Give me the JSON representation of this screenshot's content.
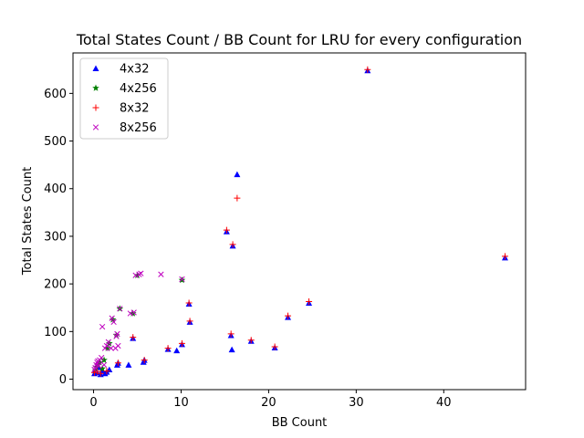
{
  "chart_data": {
    "type": "scatter",
    "title": "Total States Count / BB Count for LRU for every configuration",
    "xlabel": "BB Count",
    "ylabel": "Total States Count",
    "xlim": [
      -2.35,
      49.35
    ],
    "ylim": [
      -22,
      685
    ],
    "xticks": [
      0,
      10,
      20,
      30,
      40
    ],
    "yticks": [
      0,
      100,
      200,
      300,
      400,
      500,
      600
    ],
    "grid": false,
    "legend_position": "top-left",
    "series": [
      {
        "name": "4x32",
        "marker": "triangle",
        "color": "#0000ff",
        "points": [
          [
            0.1,
            12
          ],
          [
            0.2,
            20
          ],
          [
            0.4,
            14
          ],
          [
            0.6,
            25
          ],
          [
            0.8,
            10
          ],
          [
            1.0,
            18
          ],
          [
            1.3,
            12
          ],
          [
            1.5,
            15
          ],
          [
            1.8,
            20
          ],
          [
            2.7,
            30
          ],
          [
            2.8,
            34
          ],
          [
            4.0,
            30
          ],
          [
            4.5,
            86
          ],
          [
            5.7,
            36
          ],
          [
            5.8,
            40
          ],
          [
            8.5,
            63
          ],
          [
            9.5,
            60
          ],
          [
            10.1,
            73
          ],
          [
            10.9,
            158
          ],
          [
            11.0,
            120
          ],
          [
            15.2,
            310
          ],
          [
            15.7,
            92
          ],
          [
            15.8,
            62
          ],
          [
            15.9,
            280
          ],
          [
            16.4,
            430
          ],
          [
            18.0,
            80
          ],
          [
            20.7,
            66
          ],
          [
            22.2,
            130
          ],
          [
            24.6,
            160
          ],
          [
            31.3,
            648
          ],
          [
            47.0,
            255
          ]
        ]
      },
      {
        "name": "4x256",
        "marker": "star",
        "color": "#008000",
        "points": [
          [
            0.2,
            18
          ],
          [
            0.3,
            25
          ],
          [
            0.5,
            30
          ],
          [
            0.7,
            35
          ],
          [
            1.0,
            22
          ],
          [
            1.2,
            40
          ],
          [
            1.6,
            65
          ],
          [
            1.8,
            75
          ],
          [
            2.2,
            125
          ],
          [
            2.6,
            92
          ],
          [
            3.0,
            148
          ],
          [
            4.5,
            138
          ],
          [
            5.0,
            218
          ],
          [
            10.1,
            208
          ]
        ]
      },
      {
        "name": "8x32",
        "marker": "plus",
        "color": "#ff0000",
        "points": [
          [
            0.1,
            14
          ],
          [
            0.4,
            16
          ],
          [
            0.8,
            12
          ],
          [
            1.5,
            17
          ],
          [
            2.8,
            34
          ],
          [
            4.5,
            88
          ],
          [
            5.8,
            40
          ],
          [
            8.5,
            65
          ],
          [
            10.1,
            75
          ],
          [
            10.9,
            160
          ],
          [
            11.0,
            122
          ],
          [
            15.2,
            313
          ],
          [
            15.7,
            95
          ],
          [
            15.9,
            283
          ],
          [
            16.4,
            380
          ],
          [
            18.0,
            82
          ],
          [
            20.7,
            68
          ],
          [
            22.2,
            133
          ],
          [
            24.6,
            163
          ],
          [
            31.3,
            650
          ],
          [
            47.0,
            258
          ]
        ]
      },
      {
        "name": "8x256",
        "marker": "x",
        "color": "#bf00bf",
        "points": [
          [
            0.1,
            20
          ],
          [
            0.2,
            24
          ],
          [
            0.3,
            30
          ],
          [
            0.4,
            35
          ],
          [
            0.5,
            38
          ],
          [
            0.6,
            28
          ],
          [
            0.7,
            40
          ],
          [
            0.9,
            45
          ],
          [
            1.0,
            110
          ],
          [
            1.2,
            30
          ],
          [
            1.3,
            65
          ],
          [
            1.5,
            70
          ],
          [
            1.7,
            78
          ],
          [
            2.0,
            65
          ],
          [
            2.1,
            128
          ],
          [
            2.3,
            120
          ],
          [
            2.5,
            65
          ],
          [
            2.6,
            90
          ],
          [
            2.7,
            95
          ],
          [
            2.8,
            70
          ],
          [
            3.0,
            148
          ],
          [
            4.2,
            138
          ],
          [
            4.6,
            140
          ],
          [
            4.8,
            218
          ],
          [
            5.2,
            220
          ],
          [
            5.4,
            222
          ],
          [
            7.7,
            220
          ],
          [
            10.1,
            210
          ]
        ]
      }
    ]
  }
}
